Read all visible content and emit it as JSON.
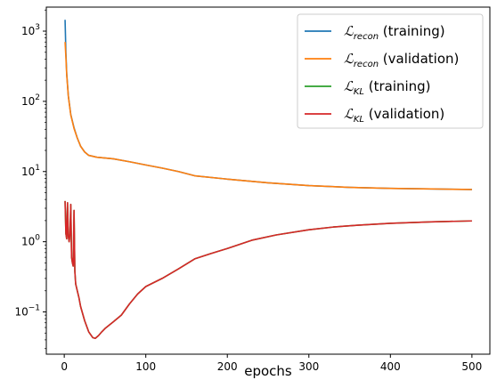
{
  "chart_data": {
    "type": "line",
    "xlabel": "epochs",
    "ylabel": "",
    "title": "",
    "yscale": "log",
    "xlim": [
      -22,
      522
    ],
    "ylim": [
      0.025,
      2200
    ],
    "grid": false,
    "legend_position": "top-right",
    "x_ticks": [
      0,
      100,
      200,
      300,
      400,
      500
    ],
    "x_tick_labels": [
      "0",
      "100",
      "200",
      "300",
      "400",
      "500"
    ],
    "y_ticks": [
      0.1,
      1,
      10,
      100,
      1000
    ],
    "y_tick_labels": [
      {
        "base": "10",
        "exp": "−1"
      },
      {
        "base": "10",
        "exp": "0"
      },
      {
        "base": "10",
        "exp": "1"
      },
      {
        "base": "10",
        "exp": "2"
      },
      {
        "base": "10",
        "exp": "3"
      }
    ],
    "series": [
      {
        "name": "recon (training)",
        "legend_main": "ℒ",
        "legend_sub": "recon",
        "legend_suffix": " (training)",
        "color": "#1f77b4",
        "x": [
          1,
          2,
          3,
          5,
          8,
          12,
          16,
          20,
          25,
          30,
          40,
          60,
          80,
          100,
          120,
          140,
          160,
          200,
          250,
          300,
          350,
          400,
          450,
          500
        ],
        "y": [
          1450,
          500,
          250,
          120,
          65,
          42,
          30,
          23,
          19,
          17,
          16,
          15.2,
          13.8,
          12.4,
          11.2,
          10,
          8.7,
          7.8,
          6.9,
          6.3,
          5.95,
          5.75,
          5.65,
          5.55
        ]
      },
      {
        "name": "recon (validation)",
        "legend_main": "ℒ",
        "legend_sub": "recon",
        "legend_suffix": " (validation)",
        "color": "#ff7f0e",
        "x": [
          1,
          2,
          3,
          5,
          8,
          12,
          16,
          20,
          25,
          30,
          40,
          60,
          80,
          100,
          120,
          140,
          160,
          200,
          250,
          300,
          350,
          400,
          450,
          500
        ],
        "y": [
          700,
          430,
          240,
          118,
          64,
          41,
          30,
          23,
          19,
          17,
          16,
          15.2,
          13.8,
          12.4,
          11.2,
          10,
          8.7,
          7.8,
          6.9,
          6.3,
          5.95,
          5.75,
          5.65,
          5.55
        ]
      },
      {
        "name": "KL (training)",
        "legend_main": "ℒ",
        "legend_sub": "KL",
        "legend_suffix": " (training)",
        "color": "#2ca02c",
        "x": [
          1,
          2,
          3,
          4,
          5,
          6,
          7,
          8,
          9,
          10,
          11,
          12,
          13,
          14,
          16,
          18,
          20,
          25,
          30,
          35,
          38,
          42,
          46,
          50,
          60,
          70,
          80,
          90,
          100,
          120,
          140,
          160,
          180,
          200,
          230,
          260,
          300,
          330,
          360,
          400,
          450,
          500
        ],
        "y": [
          3.8,
          1.3,
          1.1,
          3.6,
          1.2,
          1.0,
          1.3,
          3.4,
          0.6,
          0.5,
          0.45,
          2.8,
          0.38,
          0.25,
          0.2,
          0.16,
          0.12,
          0.075,
          0.052,
          0.043,
          0.042,
          0.046,
          0.052,
          0.058,
          0.072,
          0.09,
          0.13,
          0.18,
          0.23,
          0.3,
          0.41,
          0.57,
          0.68,
          0.8,
          1.05,
          1.25,
          1.48,
          1.62,
          1.72,
          1.83,
          1.92,
          1.98
        ]
      },
      {
        "name": "KL (validation)",
        "legend_main": "ℒ",
        "legend_sub": "KL",
        "legend_suffix": " (validation)",
        "color": "#d62728",
        "x": [
          1,
          2,
          3,
          4,
          5,
          6,
          7,
          8,
          9,
          10,
          11,
          12,
          13,
          14,
          16,
          18,
          20,
          25,
          30,
          35,
          38,
          42,
          46,
          50,
          60,
          70,
          80,
          90,
          100,
          120,
          140,
          160,
          180,
          200,
          230,
          260,
          300,
          330,
          360,
          400,
          450,
          500
        ],
        "y": [
          3.8,
          1.3,
          1.1,
          3.6,
          1.2,
          1.0,
          1.3,
          3.4,
          0.6,
          0.5,
          0.45,
          2.8,
          0.38,
          0.25,
          0.2,
          0.16,
          0.12,
          0.075,
          0.052,
          0.043,
          0.042,
          0.046,
          0.052,
          0.058,
          0.072,
          0.09,
          0.13,
          0.18,
          0.23,
          0.3,
          0.41,
          0.57,
          0.68,
          0.8,
          1.05,
          1.25,
          1.48,
          1.62,
          1.72,
          1.83,
          1.92,
          1.98
        ]
      }
    ]
  }
}
